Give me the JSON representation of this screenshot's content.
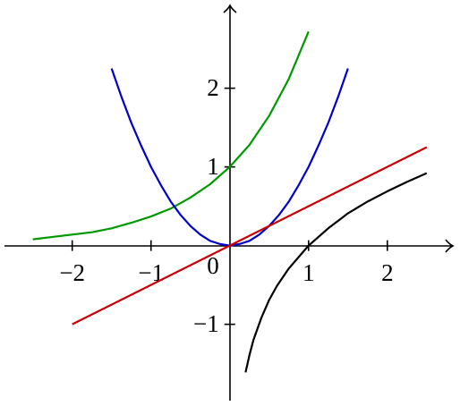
{
  "chart_data": {
    "type": "line",
    "xlim": [
      -2.86,
      2.82
    ],
    "ylim": [
      -1.97,
      3.03
    ],
    "xticks": [
      {
        "value": -2,
        "label": "−2"
      },
      {
        "value": -1,
        "label": "−1"
      },
      1,
      2
    ],
    "yticks": [
      {
        "value": -1,
        "label": "−1"
      },
      1,
      2
    ],
    "origin_label": "0",
    "series": [
      {
        "color": "#009900",
        "x": [
          -2.5,
          -2.25,
          -2,
          -1.75,
          -1.5,
          -1.25,
          -1,
          -0.75,
          -0.5,
          -0.25,
          0,
          0.25,
          0.5,
          0.75,
          1
        ],
        "values": [
          0.08,
          0.11,
          0.14,
          0.17,
          0.22,
          0.29,
          0.37,
          0.47,
          0.61,
          0.78,
          1,
          1.28,
          1.65,
          2.12,
          2.72
        ]
      },
      {
        "color": "#0000cc",
        "x": [
          -1.5,
          -1.375,
          -1.25,
          -1.125,
          -1,
          -0.875,
          -0.75,
          -0.625,
          -0.5,
          -0.375,
          -0.25,
          -0.125,
          0,
          0.125,
          0.25,
          0.375,
          0.5,
          0.625,
          0.75,
          0.875,
          1,
          1.125,
          1.25,
          1.375,
          1.5
        ],
        "values": [
          2.25,
          1.89,
          1.56,
          1.27,
          1,
          0.77,
          0.56,
          0.39,
          0.25,
          0.14,
          0.06,
          0.02,
          0,
          0.02,
          0.06,
          0.14,
          0.25,
          0.39,
          0.56,
          0.77,
          1,
          1.27,
          1.56,
          1.89,
          2.25
        ]
      },
      {
        "color": "#cc0000",
        "x": [
          -2,
          2.5
        ],
        "values": [
          -1,
          1.25
        ]
      },
      {
        "color": "#000000",
        "x": [
          0.2,
          0.25,
          0.3,
          0.4,
          0.5,
          0.6,
          0.75,
          1,
          1.25,
          1.5,
          1.75,
          2,
          2.25,
          2.5
        ],
        "values": [
          -1.61,
          -1.39,
          -1.2,
          -0.92,
          -0.69,
          -0.51,
          -0.29,
          0,
          0.22,
          0.41,
          0.56,
          0.69,
          0.81,
          0.92
        ]
      }
    ]
  }
}
